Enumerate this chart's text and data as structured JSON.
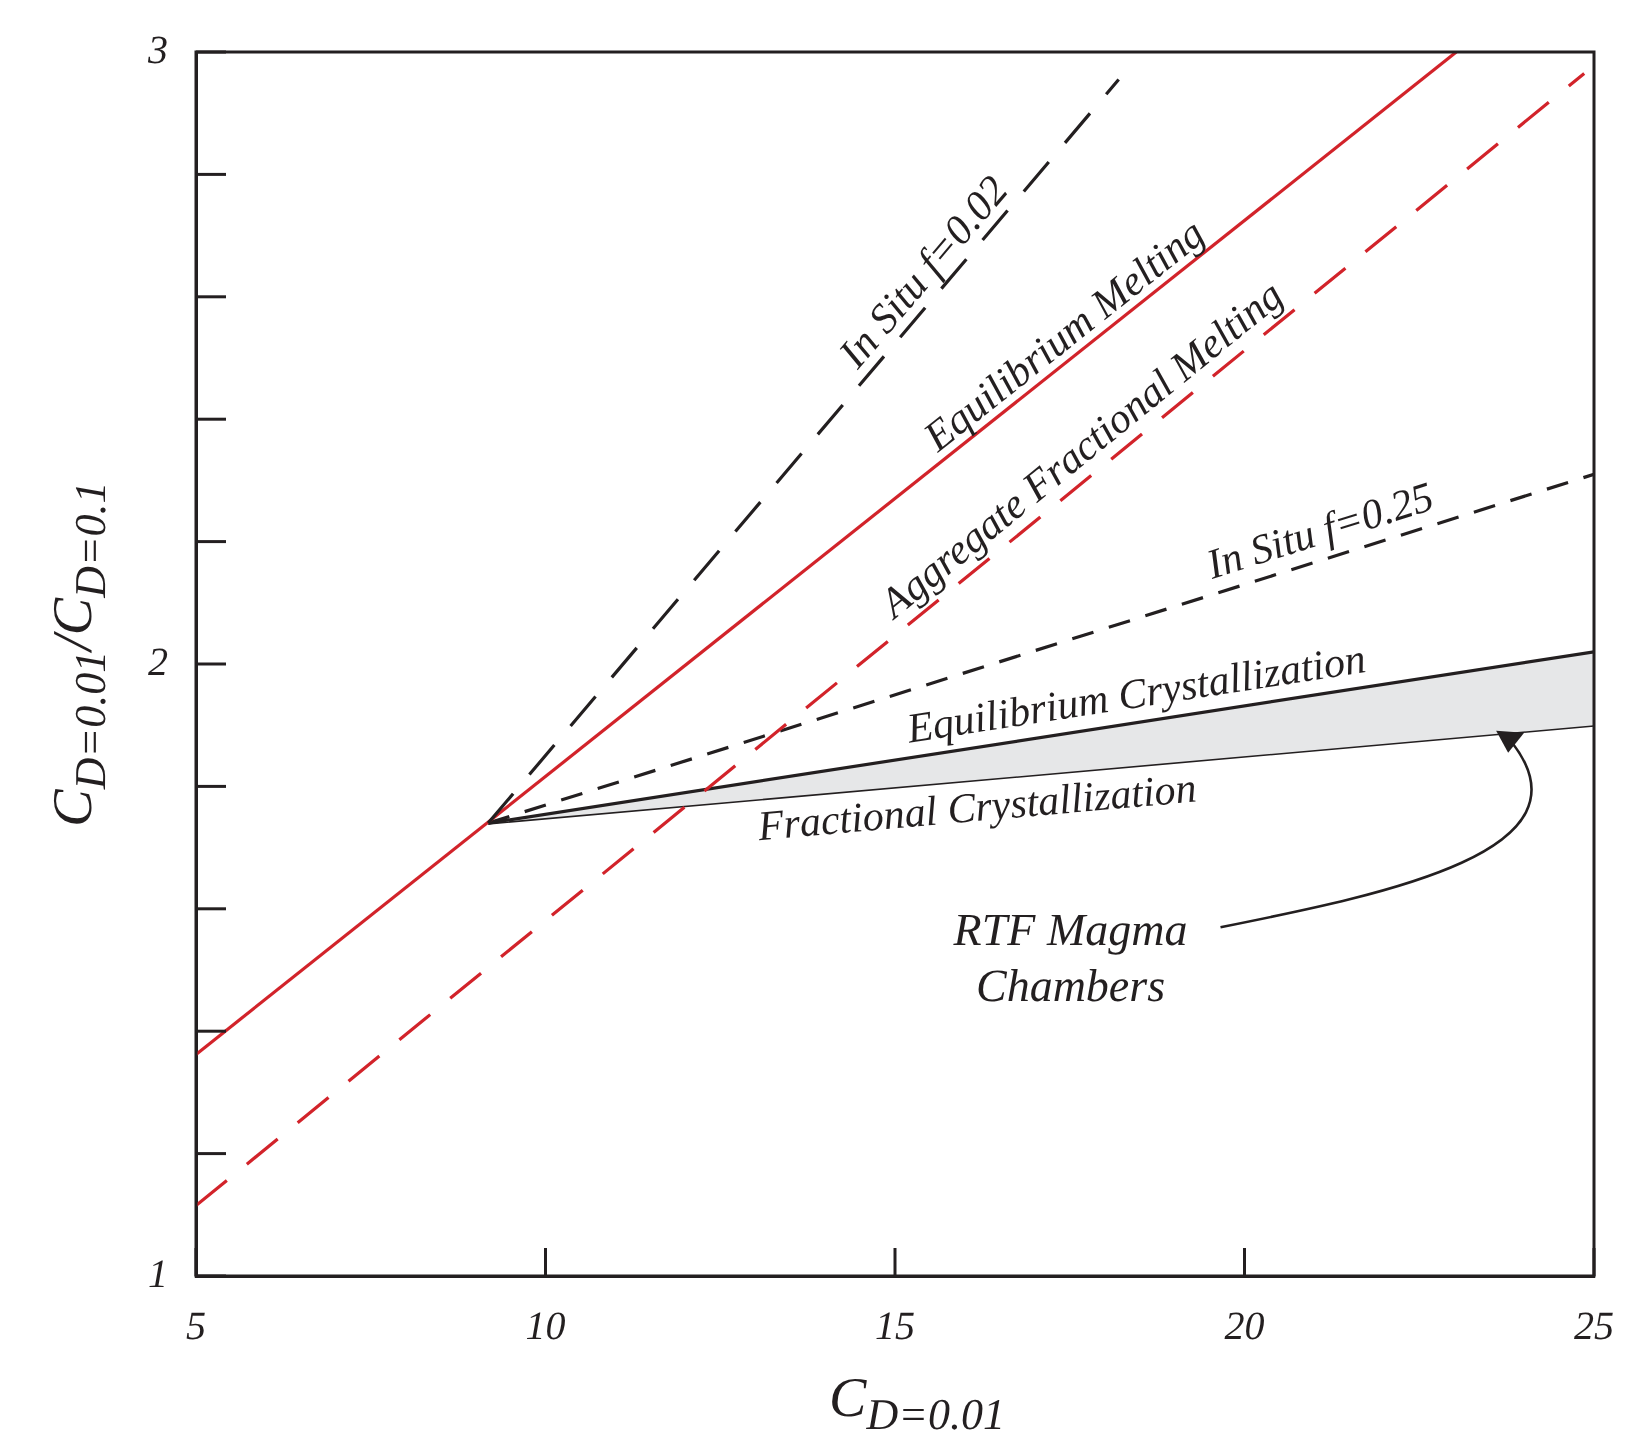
{
  "chart_data": {
    "type": "line",
    "xlabel": "C$_{D=0.01}$",
    "ylabel": "C$_{D=0.01}$/C$_{D=0.1}$",
    "xlim": [
      5,
      25
    ],
    "xticks": [
      5,
      10,
      15,
      20,
      25
    ],
    "ylim": [
      1,
      3
    ],
    "yticks": [
      1,
      {
        "value": 1.2,
        "label": null
      },
      {
        "value": 1.4,
        "label": null
      },
      {
        "value": 1.6,
        "label": null
      },
      {
        "value": 1.8,
        "label": null
      },
      2,
      {
        "value": 2.2,
        "label": null
      },
      {
        "value": 2.4,
        "label": null
      },
      {
        "value": 2.6,
        "label": null
      },
      {
        "value": 2.8,
        "label": null
      },
      3
    ],
    "grid": false,
    "legend": false,
    "marker": "none",
    "series": [
      {
        "name": "In Situ f=0.02",
        "color": "#231f20",
        "line_style": "dashed",
        "x": [
          9.18,
          18.2
        ],
        "values": [
          1.74,
          2.955
        ]
      },
      {
        "name": "Equilibrium Melting",
        "color": "#d2232a",
        "line_style": "solid",
        "x": [
          5,
          23.03
        ],
        "values": [
          1.362,
          3
        ]
      },
      {
        "name": "Aggregate Fractional Melting",
        "color": "#d2232a",
        "line_style": "dashed",
        "x": [
          5,
          24.86
        ],
        "values": [
          1.115,
          2.965
        ]
      },
      {
        "name": "In Situ f=0.25",
        "color": "#231f20",
        "line_style": "dashed",
        "x": [
          9.18,
          25
        ],
        "values": [
          1.74,
          2.31
        ]
      },
      {
        "name": "Equilibrium Crystallization",
        "color": "#231f20",
        "line_style": "solid",
        "x": [
          9.18,
          25
        ],
        "values": [
          1.74,
          2.02
        ]
      },
      {
        "name": "Fractional Crystallization",
        "color": "#231f20",
        "line_style": "solid",
        "x": [
          9.18,
          25
        ],
        "values": [
          1.74,
          1.9
        ],
        "lower": [
          1.74,
          1.9
        ],
        "upper": [
          1.74,
          2.02
        ]
      }
    ],
    "annotations": [
      "RTF Magma Chambers"
    ]
  }
}
